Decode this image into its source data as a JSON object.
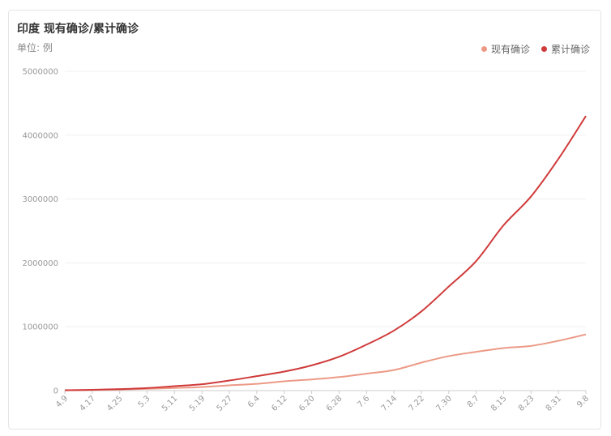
{
  "title": "印度 现有确诊/累计确诊",
  "unit_label": "单位: 例",
  "colors": {
    "active": "#ec9a86",
    "cumulative": "#d03a3a",
    "grid": "#f0f0f0",
    "axis": "#cccccc"
  },
  "chart_data": {
    "type": "line",
    "x": [
      "4.9",
      "4.17",
      "4.25",
      "5.3",
      "5.11",
      "5.19",
      "5.27",
      "6.4",
      "6.12",
      "6.20",
      "6.28",
      "7.6",
      "7.14",
      "7.22",
      "7.30",
      "8.7",
      "8.15",
      "8.23",
      "8.31",
      "9.8"
    ],
    "ylim": [
      0,
      5000000
    ],
    "yticks": [
      "0",
      "1000000",
      "2000000",
      "3000000",
      "4000000",
      "5000000"
    ],
    "legend_position": "top-right",
    "series": [
      {
        "name": "现有确诊",
        "values": [
          5000,
          11000,
          17000,
          28000,
          42000,
          56000,
          83000,
          106000,
          146000,
          175000,
          212000,
          265000,
          322000,
          438000,
          540000,
          607000,
          666000,
          700000,
          780000,
          880000
        ]
      },
      {
        "name": "累计确诊",
        "values": [
          6500,
          13000,
          24000,
          40000,
          70000,
          100000,
          158000,
          227000,
          298000,
          395000,
          530000,
          720000,
          940000,
          1240000,
          1630000,
          2030000,
          2590000,
          3040000,
          3630000,
          4300000
        ]
      }
    ]
  }
}
